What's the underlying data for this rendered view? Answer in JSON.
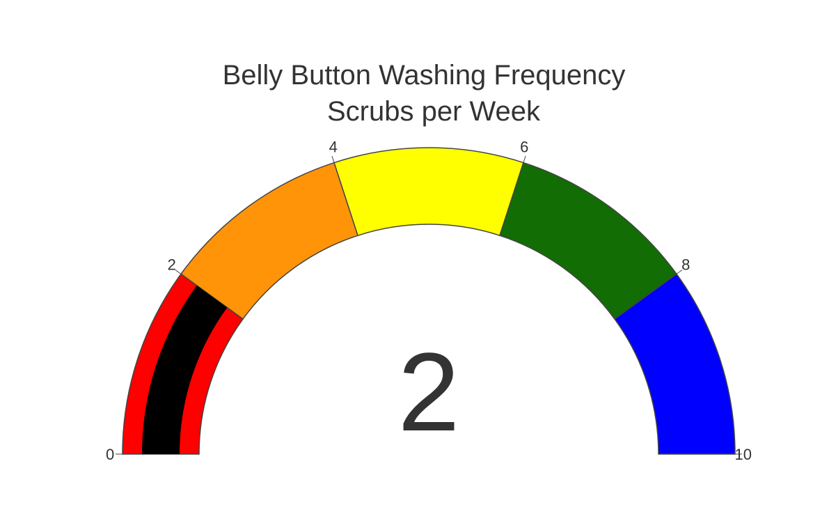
{
  "chart_data": {
    "type": "gauge",
    "title": [
      "Belly Button Washing Frequency",
      "Scrubs per Week"
    ],
    "value": 2,
    "value_label": "2",
    "range": [
      0,
      10
    ],
    "ticks": [
      {
        "value": 0,
        "label": "0"
      },
      {
        "value": 2,
        "label": "2"
      },
      {
        "value": 4,
        "label": "4"
      },
      {
        "value": 6,
        "label": "6"
      },
      {
        "value": 8,
        "label": "8"
      },
      {
        "value": 10,
        "label": "10"
      }
    ],
    "steps": [
      {
        "range": [
          0,
          2
        ],
        "color": "#ff0000"
      },
      {
        "range": [
          2,
          4
        ],
        "color": "#ff9408"
      },
      {
        "range": [
          4,
          6
        ],
        "color": "#ffff00"
      },
      {
        "range": [
          6,
          8
        ],
        "color": "#116d04"
      },
      {
        "range": [
          8,
          10
        ],
        "color": "#0000ff"
      }
    ],
    "bar_color": "#000000",
    "border_color": "#444444"
  }
}
